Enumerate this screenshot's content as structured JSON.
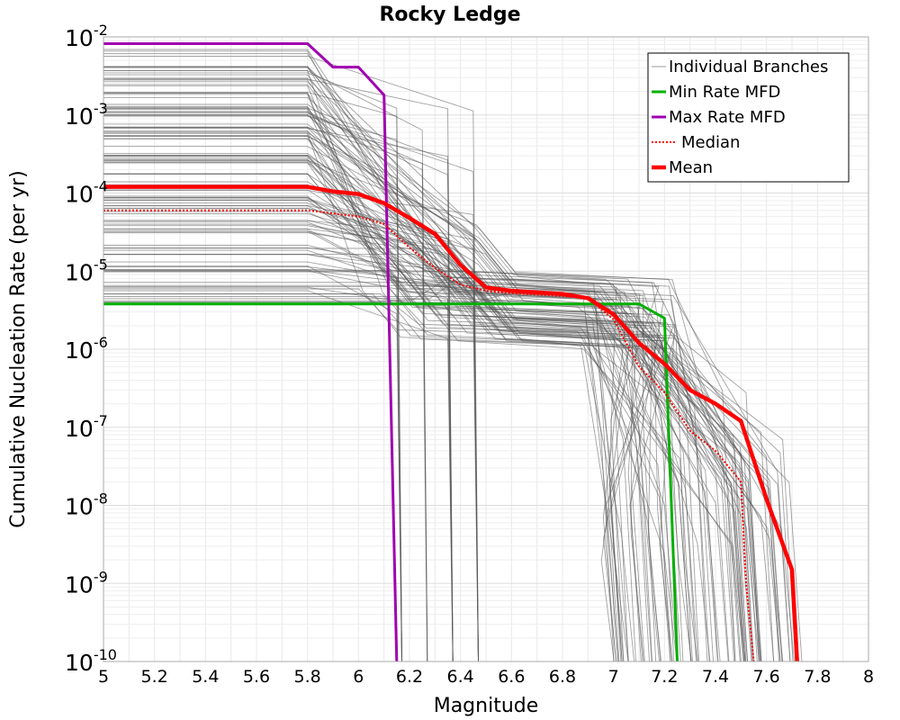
{
  "chart_data": {
    "type": "line",
    "title": "Rocky Ledge",
    "xlabel": "Magnitude",
    "ylabel": "Cumulative Nucleation Rate (per yr)",
    "xlim": [
      5,
      8
    ],
    "ylim": [
      1e-10,
      0.01
    ],
    "y_scale": "log",
    "grid": true,
    "legend_position": "top-right",
    "x_ticks": [
      "5",
      "5.2",
      "5.4",
      "5.6",
      "5.8",
      "6",
      "6.2",
      "6.4",
      "6.6",
      "6.8",
      "7",
      "7.2",
      "7.4",
      "7.6",
      "7.8",
      "8"
    ],
    "y_ticks": [
      {
        "value": 0.01,
        "base": "10",
        "exp": "-2"
      },
      {
        "value": 0.001,
        "base": "10",
        "exp": "-3"
      },
      {
        "value": 0.0001,
        "base": "10",
        "exp": "-4"
      },
      {
        "value": 1e-05,
        "base": "10",
        "exp": "-5"
      },
      {
        "value": 1e-06,
        "base": "10",
        "exp": "-6"
      },
      {
        "value": 1e-07,
        "base": "10",
        "exp": "-7"
      },
      {
        "value": 1e-08,
        "base": "10",
        "exp": "-8"
      },
      {
        "value": 1e-09,
        "base": "10",
        "exp": "-9"
      },
      {
        "value": 1e-10,
        "base": "10",
        "exp": "-10"
      }
    ],
    "series": [
      {
        "name": "Individual Branches",
        "color": "#555555",
        "style": "thin",
        "note_count": 120
      },
      {
        "name": "Min Rate MFD",
        "color": "#00b000",
        "style": "solid",
        "x": [
          5.0,
          5.8,
          7.1,
          7.2,
          7.25
        ],
        "y": [
          3.8e-06,
          3.8e-06,
          3.8e-06,
          2.5e-06,
          1e-10
        ]
      },
      {
        "name": "Max Rate MFD",
        "color": "#a000b0",
        "style": "solid",
        "x": [
          5.0,
          5.8,
          5.9,
          6.0,
          6.1,
          6.15
        ],
        "y": [
          0.0082,
          0.0082,
          0.0041,
          0.0041,
          0.0018,
          1e-10
        ]
      },
      {
        "name": "Median",
        "color": "#ff0000",
        "style": "dotted",
        "x": [
          5.0,
          5.8,
          6.0,
          6.1,
          6.2,
          6.3,
          6.4,
          6.5,
          6.6,
          6.8,
          6.9,
          7.0,
          7.1,
          7.2,
          7.3,
          7.4,
          7.5,
          7.52,
          7.55
        ],
        "y": [
          6e-05,
          6e-05,
          5e-05,
          4e-05,
          2e-05,
          1.1e-05,
          6.7e-06,
          5.6e-06,
          5.2e-06,
          4.8e-06,
          4.5e-06,
          2.4e-06,
          6e-07,
          2.8e-07,
          9e-08,
          5e-08,
          2e-08,
          1e-09,
          1e-10
        ]
      },
      {
        "name": "Mean",
        "color": "#ff0000",
        "style": "thick",
        "x": [
          5.0,
          5.8,
          5.9,
          6.0,
          6.1,
          6.2,
          6.3,
          6.4,
          6.5,
          6.6,
          6.8,
          6.9,
          7.0,
          7.1,
          7.2,
          7.3,
          7.4,
          7.5,
          7.6,
          7.7,
          7.72
        ],
        "y": [
          0.00012,
          0.00012,
          0.000105,
          9.7e-05,
          7.4e-05,
          4.8e-05,
          3e-05,
          1.2e-05,
          6.2e-06,
          5.6e-06,
          5.1e-06,
          4.5e-06,
          2.8e-06,
          1.2e-06,
          6.5e-07,
          3e-07,
          2e-07,
          1.2e-07,
          1.2e-08,
          1.5e-09,
          1e-10
        ]
      }
    ]
  }
}
